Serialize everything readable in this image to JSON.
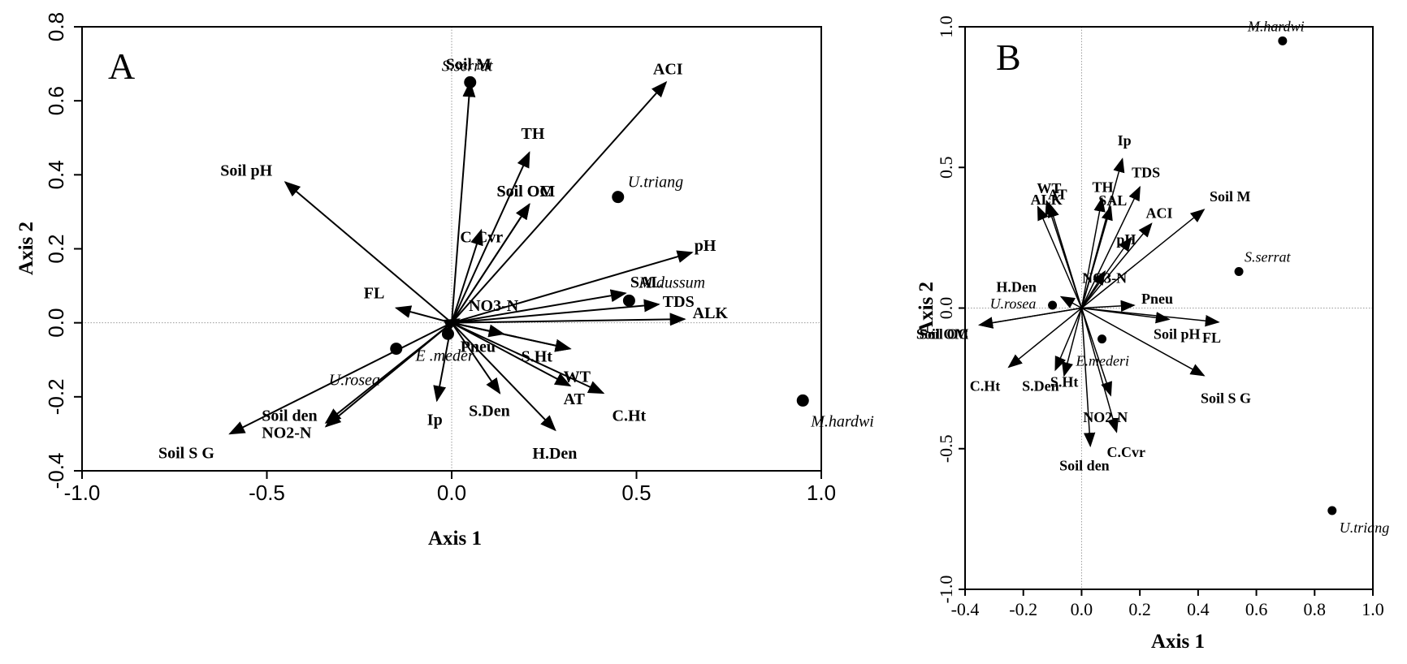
{
  "chart_data": [
    {
      "panel": "A",
      "type": "scatter",
      "subtype": "biplot",
      "title": "",
      "xlabel": "Axis 1",
      "ylabel": "Axis 2",
      "xlim": [
        -1.0,
        1.0
      ],
      "ylim": [
        -0.4,
        0.8
      ],
      "xticks": [
        "-1.0",
        "-0.5",
        "0.0",
        "0.5",
        "1.0"
      ],
      "yticks": [
        "-0.4",
        "-0.2",
        "0.0",
        "0.2",
        "0.4",
        "0.6",
        "0.8"
      ],
      "grid": false,
      "zero_lines": true,
      "vectors": [
        {
          "label": "ACI",
          "x": 0.58,
          "y": 0.65
        },
        {
          "label": "Soil M",
          "x": 0.05,
          "y": 0.65
        },
        {
          "label": "TH",
          "x": 0.21,
          "y": 0.46
        },
        {
          "label": "Soil OM",
          "x": 0.21,
          "y": 0.32
        },
        {
          "label": "Soil OC",
          "x": 0.21,
          "y": 0.32
        },
        {
          "label": "C.Cvr",
          "x": 0.08,
          "y": 0.25
        },
        {
          "label": "Soil pH",
          "x": -0.45,
          "y": 0.38
        },
        {
          "label": "pH",
          "x": 0.65,
          "y": 0.19
        },
        {
          "label": "SAL",
          "x": 0.47,
          "y": 0.08
        },
        {
          "label": "TDS",
          "x": 0.56,
          "y": 0.05
        },
        {
          "label": "ALK",
          "x": 0.63,
          "y": 0.01
        },
        {
          "label": "NO3-N",
          "x": 0.02,
          "y": 0.01
        },
        {
          "label": "FL",
          "x": -0.15,
          "y": 0.04
        },
        {
          "label": "Pneu",
          "x": 0.14,
          "y": -0.03
        },
        {
          "label": "S.Ht",
          "x": 0.32,
          "y": -0.07
        },
        {
          "label": "WT",
          "x": 0.32,
          "y": -0.07
        },
        {
          "label": "AT",
          "x": 0.32,
          "y": -0.17
        },
        {
          "label": "C.Ht",
          "x": 0.41,
          "y": -0.19
        },
        {
          "label": "S.Den",
          "x": 0.13,
          "y": -0.19
        },
        {
          "label": "H.Den",
          "x": 0.28,
          "y": -0.29
        },
        {
          "label": "Ip",
          "x": -0.04,
          "y": -0.21
        },
        {
          "label": "Soil S G",
          "x": -0.6,
          "y": -0.3
        },
        {
          "label": "Soil den",
          "x": -0.34,
          "y": -0.27
        },
        {
          "label": "NO2-N",
          "x": -0.34,
          "y": -0.28
        }
      ],
      "points": [
        {
          "label": "S.serrat",
          "x": 0.05,
          "y": 0.65
        },
        {
          "label": "U.triang",
          "x": 0.45,
          "y": 0.34
        },
        {
          "label": "M.dussum",
          "x": 0.48,
          "y": 0.06
        },
        {
          "label": "M.hardwi",
          "x": 0.95,
          "y": -0.21
        },
        {
          "label": "U.rosea",
          "x": -0.15,
          "y": -0.07
        },
        {
          "label": "E .meder",
          "x": -0.01,
          "y": -0.03
        }
      ]
    },
    {
      "panel": "B",
      "type": "scatter",
      "subtype": "biplot",
      "title": "",
      "xlabel": "Axis 1",
      "ylabel": "Axis 2",
      "xlim": [
        -0.4,
        1.0
      ],
      "ylim": [
        -1.0,
        1.0
      ],
      "xticks": [
        "-0.4",
        "-0.2",
        "0.0",
        "0.2",
        "0.4",
        "0.6",
        "0.8",
        "1.0"
      ],
      "yticks": [
        "-1.0",
        "-0.5",
        "0.0",
        "0.5",
        "1.0"
      ],
      "grid": false,
      "zero_lines": true,
      "vectors": [
        {
          "label": "Ip",
          "x": 0.14,
          "y": 0.53
        },
        {
          "label": "TDS",
          "x": 0.2,
          "y": 0.43
        },
        {
          "label": "TH",
          "x": 0.07,
          "y": 0.39
        },
        {
          "label": "SAL",
          "x": 0.1,
          "y": 0.36
        },
        {
          "label": "WT",
          "x": -0.12,
          "y": 0.38
        },
        {
          "label": "AT",
          "x": -0.11,
          "y": 0.37
        },
        {
          "label": "ALK",
          "x": -0.15,
          "y": 0.36
        },
        {
          "label": "ACI",
          "x": 0.24,
          "y": 0.3
        },
        {
          "label": "pH",
          "x": 0.17,
          "y": 0.25
        },
        {
          "label": "NO3-N",
          "x": 0.08,
          "y": 0.13
        },
        {
          "label": "Soil M",
          "x": 0.42,
          "y": 0.35
        },
        {
          "label": "H.Den",
          "x": -0.07,
          "y": 0.04
        },
        {
          "label": "Pneu",
          "x": 0.18,
          "y": 0.01
        },
        {
          "label": "Soil pH",
          "x": 0.3,
          "y": -0.04
        },
        {
          "label": "FL",
          "x": 0.47,
          "y": -0.05
        },
        {
          "label": "Soil S G",
          "x": 0.42,
          "y": -0.24
        },
        {
          "label": "Soil OM",
          "x": -0.35,
          "y": -0.06
        },
        {
          "label": "Soil OC",
          "x": -0.35,
          "y": -0.06
        },
        {
          "label": "C.Ht",
          "x": -0.25,
          "y": -0.21
        },
        {
          "label": "S.Den",
          "x": -0.09,
          "y": -0.22
        },
        {
          "label": "S.Ht",
          "x": -0.06,
          "y": -0.24
        },
        {
          "label": "NO2-N",
          "x": 0.1,
          "y": -0.31
        },
        {
          "label": "C.Cvr",
          "x": 0.12,
          "y": -0.44
        },
        {
          "label": "Soil den",
          "x": 0.03,
          "y": -0.49
        }
      ],
      "points": [
        {
          "label": "M.hardwi",
          "x": 0.69,
          "y": 0.95
        },
        {
          "label": "S.serrat",
          "x": 0.54,
          "y": 0.13
        },
        {
          "label": "U.rosea",
          "x": -0.1,
          "y": 0.01
        },
        {
          "label": "E.mederi",
          "x": 0.07,
          "y": -0.11
        },
        {
          "label": "U.triang",
          "x": 0.86,
          "y": -0.72
        }
      ]
    }
  ]
}
